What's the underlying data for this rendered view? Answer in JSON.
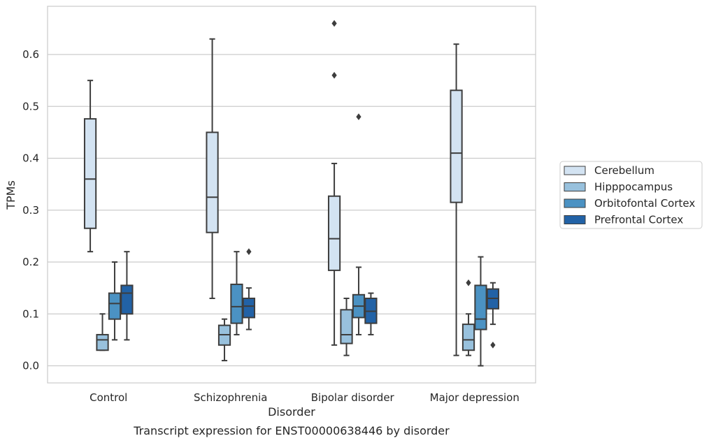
{
  "chart_data": {
    "type": "box",
    "xlabel": "Disorder",
    "ylabel": "TPMs",
    "caption": "Transcript expression for ENST00000638446 by disorder",
    "ylim": [
      -0.033,
      0.693
    ],
    "yticks": [
      "0.0",
      "0.1",
      "0.2",
      "0.3",
      "0.4",
      "0.5",
      "0.6"
    ],
    "grid": "horizontal",
    "legend_position": "right",
    "categories": [
      "Control",
      "Schizophrenia",
      "Bipolar disorder",
      "Major depression"
    ],
    "series": [
      {
        "name": "Cerebellum",
        "color": "#d3e3f2",
        "boxes": [
          {
            "min": 0.22,
            "q1": 0.265,
            "median": 0.36,
            "q3": 0.476,
            "max": 0.55,
            "outliers": []
          },
          {
            "min": 0.13,
            "q1": 0.257,
            "median": 0.325,
            "q3": 0.45,
            "max": 0.63,
            "outliers": []
          },
          {
            "min": 0.04,
            "q1": 0.184,
            "median": 0.245,
            "q3": 0.327,
            "max": 0.39,
            "outliers": [
              0.56,
              0.66
            ]
          },
          {
            "min": 0.02,
            "q1": 0.315,
            "median": 0.41,
            "q3": 0.531,
            "max": 0.62,
            "outliers": []
          }
        ]
      },
      {
        "name": "Hipppocampus",
        "color": "#98c1dd",
        "boxes": [
          {
            "min": 0.03,
            "q1": 0.03,
            "median": 0.05,
            "q3": 0.06,
            "max": 0.1,
            "outliers": []
          },
          {
            "min": 0.01,
            "q1": 0.04,
            "median": 0.06,
            "q3": 0.078,
            "max": 0.09,
            "outliers": []
          },
          {
            "min": 0.02,
            "q1": 0.043,
            "median": 0.06,
            "q3": 0.108,
            "max": 0.13,
            "outliers": []
          },
          {
            "min": 0.02,
            "q1": 0.03,
            "median": 0.05,
            "q3": 0.08,
            "max": 0.1,
            "outliers": [
              0.16
            ]
          }
        ]
      },
      {
        "name": "Orbitofontal Cortex",
        "color": "#4b92c3",
        "boxes": [
          {
            "min": 0.05,
            "q1": 0.09,
            "median": 0.12,
            "q3": 0.14,
            "max": 0.2,
            "outliers": []
          },
          {
            "min": 0.06,
            "q1": 0.082,
            "median": 0.114,
            "q3": 0.157,
            "max": 0.22,
            "outliers": []
          },
          {
            "min": 0.06,
            "q1": 0.093,
            "median": 0.115,
            "q3": 0.137,
            "max": 0.19,
            "outliers": [
              0.48
            ]
          },
          {
            "min": 0.0,
            "q1": 0.07,
            "median": 0.09,
            "q3": 0.155,
            "max": 0.21,
            "outliers": []
          }
        ]
      },
      {
        "name": "Prefrontal Cortex",
        "color": "#2262a6",
        "boxes": [
          {
            "min": 0.05,
            "q1": 0.1,
            "median": 0.14,
            "q3": 0.155,
            "max": 0.22,
            "outliers": []
          },
          {
            "min": 0.07,
            "q1": 0.093,
            "median": 0.115,
            "q3": 0.13,
            "max": 0.15,
            "outliers": [
              0.22
            ]
          },
          {
            "min": 0.06,
            "q1": 0.082,
            "median": 0.105,
            "q3": 0.13,
            "max": 0.14,
            "outliers": []
          },
          {
            "min": 0.08,
            "q1": 0.11,
            "median": 0.13,
            "q3": 0.148,
            "max": 0.16,
            "outliers": [
              0.04
            ]
          }
        ]
      }
    ]
  }
}
